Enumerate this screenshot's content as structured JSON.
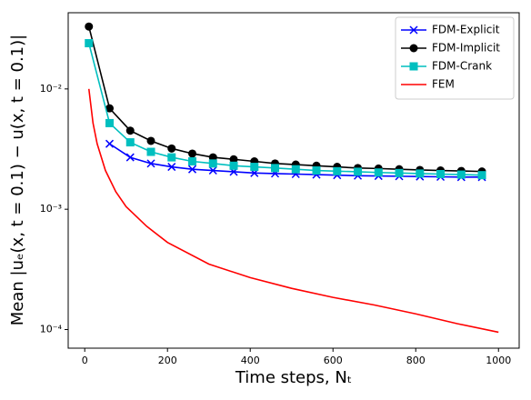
{
  "chart_data": {
    "type": "line",
    "xlabel": "Time steps, Nₜ",
    "ylabel": "Mean |uₑ(x, t = 0.1) − u(x, t = 0.1)|",
    "log_y": true,
    "legend": "upper right",
    "xlim": [
      -40,
      1050
    ],
    "ylim": [
      7e-05,
      0.043
    ],
    "xticks": [
      0,
      200,
      400,
      600,
      800,
      1000
    ],
    "yticks": [
      {
        "value": 0.0001,
        "label": "10⁻⁴"
      },
      {
        "value": 0.001,
        "label": "10⁻³"
      },
      {
        "value": 0.01,
        "label": "10⁻²"
      }
    ],
    "series": [
      {
        "name": "FDM-Explicit",
        "color": "#0000ff",
        "marker": "x",
        "x": [
          10,
          60,
          110,
          160,
          210,
          260,
          310,
          360,
          410,
          460,
          510,
          560,
          610,
          660,
          710,
          760,
          810,
          860,
          910,
          960
        ],
        "values": [
          null,
          0.0035,
          0.0027,
          0.0024,
          0.00225,
          0.00215,
          0.0021,
          0.00205,
          0.002,
          0.00198,
          0.00196,
          0.00194,
          0.00192,
          0.0019,
          0.00189,
          0.00188,
          0.00187,
          0.00186,
          0.00185,
          0.00185
        ]
      },
      {
        "name": "FDM-Implicit",
        "color": "#000000",
        "marker": "circle",
        "x": [
          10,
          60,
          110,
          160,
          210,
          260,
          310,
          360,
          410,
          460,
          510,
          560,
          610,
          660,
          710,
          760,
          810,
          860,
          910,
          960
        ],
        "values": [
          0.033,
          0.0069,
          0.0045,
          0.0037,
          0.0032,
          0.0029,
          0.0027,
          0.0026,
          0.0025,
          0.0024,
          0.00235,
          0.0023,
          0.00225,
          0.0022,
          0.00218,
          0.00215,
          0.00212,
          0.0021,
          0.00208,
          0.00206
        ]
      },
      {
        "name": "FDM-Crank",
        "color": "#00bfbf",
        "marker": "square",
        "x": [
          10,
          60,
          110,
          160,
          210,
          260,
          310,
          360,
          410,
          460,
          510,
          560,
          610,
          660,
          710,
          760,
          810,
          860,
          910,
          960
        ],
        "values": [
          0.024,
          0.0052,
          0.0036,
          0.003,
          0.0027,
          0.0025,
          0.0024,
          0.0023,
          0.00225,
          0.0022,
          0.00215,
          0.0021,
          0.00207,
          0.00205,
          0.00202,
          0.002,
          0.00198,
          0.00196,
          0.00194,
          0.00192
        ]
      },
      {
        "name": "FEM",
        "color": "#ff0000",
        "marker": "none",
        "x": [
          10,
          20,
          30,
          50,
          75,
          100,
          150,
          200,
          300,
          400,
          500,
          600,
          700,
          800,
          900,
          1000
        ],
        "values": [
          0.01,
          0.0052,
          0.0035,
          0.0021,
          0.0014,
          0.00105,
          0.00072,
          0.00053,
          0.00035,
          0.00027,
          0.00022,
          0.000185,
          0.00016,
          0.000135,
          0.000112,
          9.5e-05
        ]
      }
    ]
  }
}
